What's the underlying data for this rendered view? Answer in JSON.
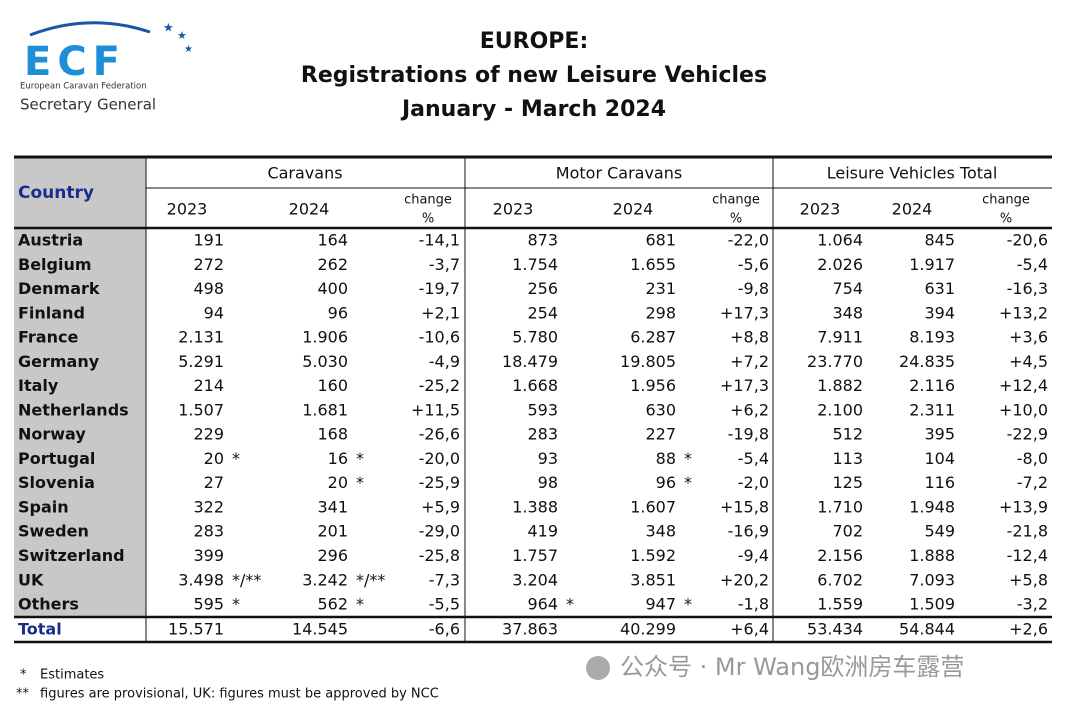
{
  "logo": {
    "letters": "ECF",
    "federation": "European Caravan Federation",
    "office": "Secretary General"
  },
  "title": {
    "line1": "EUROPE:",
    "line2": "Registrations of new Leisure Vehicles",
    "line3": "January - March 2024"
  },
  "table": {
    "country_header": "Country",
    "groups": [
      {
        "name": "Caravans",
        "columns": [
          "2023",
          "2024"
        ],
        "change_label": [
          "change",
          "%"
        ]
      },
      {
        "name": "Motor Caravans",
        "columns": [
          "2023",
          "2024"
        ],
        "change_label": [
          "change",
          "%"
        ]
      },
      {
        "name": "Leisure Vehicles Total",
        "columns": [
          "2023",
          "2024"
        ],
        "change_label": [
          "change",
          "%"
        ]
      }
    ],
    "rows": [
      {
        "country": "Austria",
        "cells": [
          "191",
          "164",
          "-14,1",
          "873",
          "681",
          "-22,0",
          "1.064",
          "845",
          "-20,6"
        ]
      },
      {
        "country": "Belgium",
        "cells": [
          "272",
          "262",
          "-3,7",
          "1.754",
          "1.655",
          "-5,6",
          "2.026",
          "1.917",
          "-5,4"
        ]
      },
      {
        "country": "Denmark",
        "cells": [
          "498",
          "400",
          "-19,7",
          "256",
          "231",
          "-9,8",
          "754",
          "631",
          "-16,3"
        ]
      },
      {
        "country": "Finland",
        "cells": [
          "94",
          "96",
          "+2,1",
          "254",
          "298",
          "+17,3",
          "348",
          "394",
          "+13,2"
        ]
      },
      {
        "country": "France",
        "cells": [
          "2.131",
          "1.906",
          "-10,6",
          "5.780",
          "6.287",
          "+8,8",
          "7.911",
          "8.193",
          "+3,6"
        ]
      },
      {
        "country": "Germany",
        "cells": [
          "5.291",
          "5.030",
          "-4,9",
          "18.479",
          "19.805",
          "+7,2",
          "23.770",
          "24.835",
          "+4,5"
        ]
      },
      {
        "country": "Italy",
        "cells": [
          "214",
          "160",
          "-25,2",
          "1.668",
          "1.956",
          "+17,3",
          "1.882",
          "2.116",
          "+12,4"
        ]
      },
      {
        "country": "Netherlands",
        "cells": [
          "1.507",
          "1.681",
          "+11,5",
          "593",
          "630",
          "+6,2",
          "2.100",
          "2.311",
          "+10,0"
        ]
      },
      {
        "country": "Norway",
        "cells": [
          "229",
          "168",
          "-26,6",
          "283",
          "227",
          "-19,8",
          "512",
          "395",
          "-22,9"
        ]
      },
      {
        "country": "Portugal",
        "cells": [
          "20",
          "16",
          "-20,0",
          "93",
          "88",
          "-5,4",
          "113",
          "104",
          "-8,0"
        ],
        "notes": {
          "0": "*",
          "1": "*",
          "4": "*"
        }
      },
      {
        "country": "Slovenia",
        "cells": [
          "27",
          "20",
          "-25,9",
          "98",
          "96",
          "-2,0",
          "125",
          "116",
          "-7,2"
        ],
        "notes": {
          "1": "*",
          "4": "*"
        }
      },
      {
        "country": "Spain",
        "cells": [
          "322",
          "341",
          "+5,9",
          "1.388",
          "1.607",
          "+15,8",
          "1.710",
          "1.948",
          "+13,9"
        ]
      },
      {
        "country": "Sweden",
        "cells": [
          "283",
          "201",
          "-29,0",
          "419",
          "348",
          "-16,9",
          "702",
          "549",
          "-21,8"
        ]
      },
      {
        "country": "Switzerland",
        "cells": [
          "399",
          "296",
          "-25,8",
          "1.757",
          "1.592",
          "-9,4",
          "2.156",
          "1.888",
          "-12,4"
        ]
      },
      {
        "country": "UK",
        "cells": [
          "3.498",
          "3.242",
          "-7,3",
          "3.204",
          "3.851",
          "+20,2",
          "6.702",
          "7.093",
          "+5,8"
        ],
        "notes": {
          "0": "*/**",
          "1": "*/**"
        }
      },
      {
        "country": "Others",
        "cells": [
          "595",
          "562",
          "-5,5",
          "964",
          "947",
          "-1,8",
          "1.559",
          "1.509",
          "-3,2"
        ],
        "notes": {
          "0": "*",
          "1": "*",
          "3": "*",
          "4": "*"
        }
      }
    ],
    "total": {
      "country": "Total",
      "cells": [
        "15.571",
        "14.545",
        "-6,6",
        "37.863",
        "40.299",
        "+6,4",
        "53.434",
        "54.844",
        "+2,6"
      ]
    }
  },
  "footnotes": [
    {
      "marker": "*",
      "text": "Estimates"
    },
    {
      "marker": "**",
      "text": "figures are provisional, UK: figures must be approved by NCC"
    }
  ],
  "watermark": "公众号 · Mr Wang欧洲房车露营"
}
